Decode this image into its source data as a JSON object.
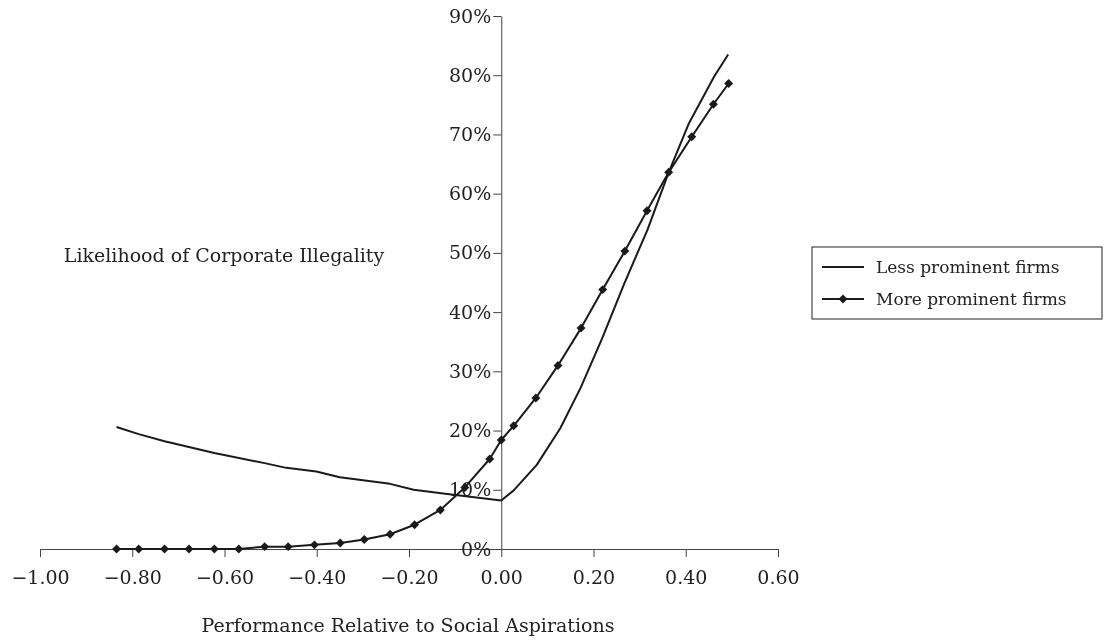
{
  "chart_data": {
    "type": "line",
    "xlabel": "Performance Relative to Social Aspirations",
    "ylabel": "Likelihood of Corporate Illegality",
    "xlim": [
      -1,
      0.6
    ],
    "xticks": [
      {
        "value": -1,
        "label": "−1.00"
      },
      {
        "value": -0.8,
        "label": "−0.80"
      },
      {
        "value": -0.6,
        "label": "−0.60"
      },
      {
        "value": -0.4,
        "label": "−0.40"
      },
      {
        "value": -0.2,
        "label": "−0.20"
      },
      {
        "value": 0,
        "label": "0.00"
      },
      {
        "value": 0.2,
        "label": "0.20"
      },
      {
        "value": 0.4,
        "label": "0.40"
      },
      {
        "value": 0.6,
        "label": "0.60"
      }
    ],
    "ylim": [
      0,
      90
    ],
    "yticks": [
      {
        "value": 0,
        "label": "0%"
      },
      {
        "value": 10,
        "label": "10%"
      },
      {
        "value": 20,
        "label": "20%"
      },
      {
        "value": 30,
        "label": "30%"
      },
      {
        "value": 40,
        "label": "40%"
      },
      {
        "value": 50,
        "label": "50%"
      },
      {
        "value": 60,
        "label": "60%"
      },
      {
        "value": 70,
        "label": "70%"
      },
      {
        "value": 80,
        "label": "80%"
      },
      {
        "value": 90,
        "label": "90%"
      }
    ],
    "grid": false,
    "legend": "right",
    "series": [
      {
        "name": "Less prominent firms",
        "color": "#1a1a1a",
        "marker": "none",
        "x": [
          -0.834,
          -0.786,
          -0.73,
          -0.622,
          -0.513,
          -0.466,
          -0.401,
          -0.35,
          -0.241,
          -0.19,
          -0.117,
          0,
          0.027,
          0.077,
          0.128,
          0.172,
          0.219,
          0.266,
          0.317,
          0.363,
          0.407,
          0.461,
          0.492
        ],
        "values": [
          20.6,
          19.4,
          18.2,
          16.2,
          14.5,
          13.7,
          13.1,
          12.1,
          11,
          10,
          9.3,
          8.2,
          9.9,
          14.2,
          20.4,
          27.2,
          35.6,
          44.7,
          53.9,
          63.6,
          71.9,
          79.7,
          83.5
        ]
      },
      {
        "name": "More prominent firms",
        "color": "#1a1a1a",
        "marker": "diamond",
        "x": [
          -0.834,
          -0.786,
          -0.73,
          -0.677,
          -0.622,
          -0.569,
          -0.513,
          -0.462,
          -0.405,
          -0.349,
          -0.297,
          -0.241,
          -0.188,
          -0.132,
          -0.079,
          -0.025,
          0,
          0.027,
          0.075,
          0.123,
          0.173,
          0.22,
          0.268,
          0.316,
          0.363,
          0.413,
          0.46,
          0.493
        ],
        "values": [
          0,
          0,
          0,
          0,
          0,
          0,
          0.4,
          0.4,
          0.7,
          1,
          1.6,
          2.5,
          4.1,
          6.6,
          10.4,
          15.2,
          18.4,
          20.8,
          25.5,
          31,
          37.3,
          43.8,
          50.3,
          57.1,
          63.6,
          69.6,
          75.1,
          78.6
        ]
      }
    ]
  }
}
